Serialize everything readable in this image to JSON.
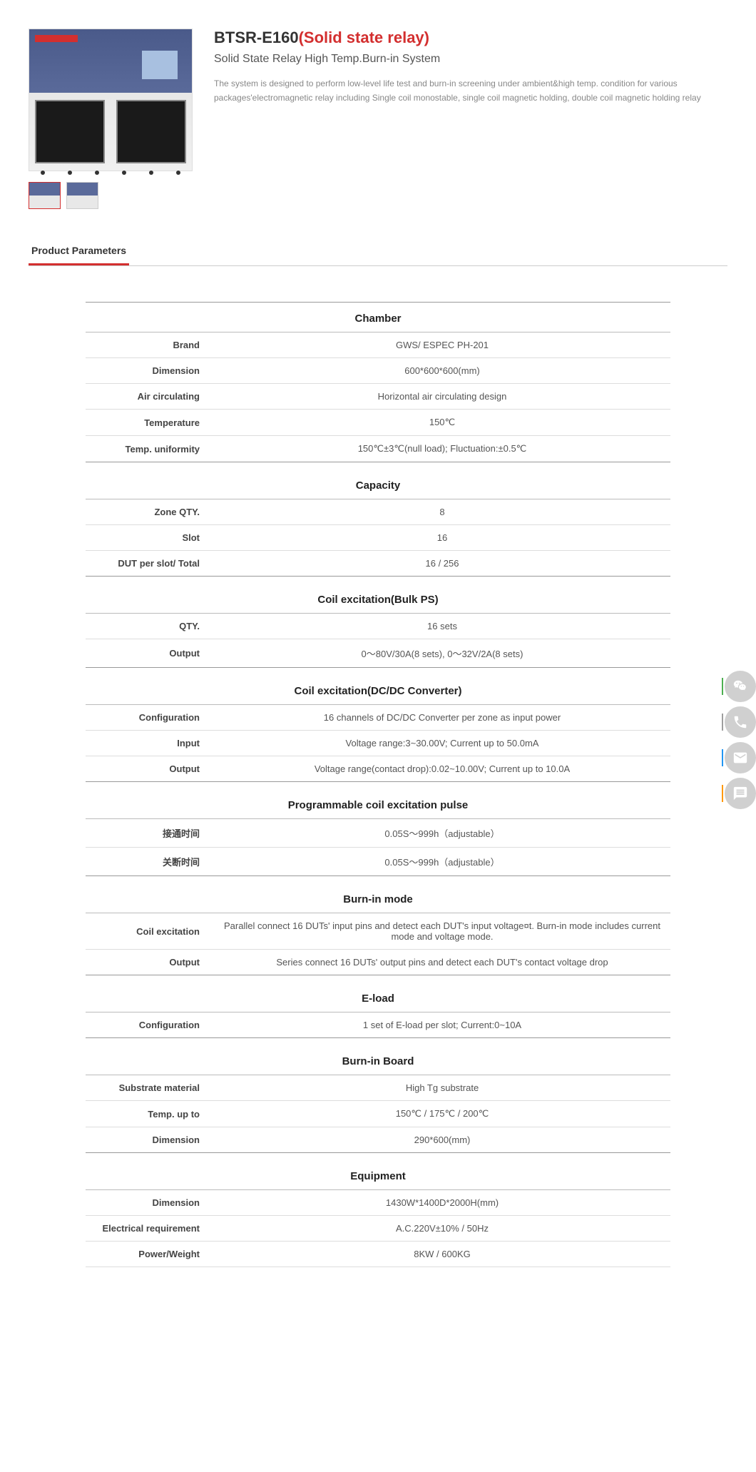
{
  "product": {
    "model": "BTSR-E160",
    "type_label": "(Solid state relay)",
    "subtitle": "Solid State Relay High Temp.Burn-in System",
    "description": "The system is designed to perform low-level life test and burn-in screening under ambient&high temp. condition for various packages'electromagnetic relay including Single coil monostable, single coil magnetic holding, double coil magnetic holding relay"
  },
  "tab": {
    "parameters": "Product Parameters"
  },
  "colors": {
    "accent": "#d32f2f",
    "border": "#ccc"
  },
  "sections": [
    {
      "title": "Chamber",
      "rows": [
        {
          "label": "Brand",
          "value": "GWS/ ESPEC PH-201"
        },
        {
          "label": "Dimension",
          "value": "600*600*600(mm)"
        },
        {
          "label": "Air circulating",
          "value": "Horizontal air circulating design"
        },
        {
          "label": "Temperature",
          "value": "150℃"
        },
        {
          "label": "Temp. uniformity",
          "value": "150℃±3℃(null load); Fluctuation:±0.5℃"
        }
      ]
    },
    {
      "title": "Capacity",
      "rows": [
        {
          "label": "Zone QTY.",
          "value": "8"
        },
        {
          "label": "Slot",
          "value": "16"
        },
        {
          "label": "DUT per slot/ Total",
          "value": "16 / 256"
        }
      ]
    },
    {
      "title": "Coil excitation(Bulk PS)",
      "rows": [
        {
          "label": "QTY.",
          "value": "16 sets"
        },
        {
          "label": "Output",
          "value": "0～80V/30A(8 sets), 0～32V/2A(8 sets)"
        }
      ]
    },
    {
      "title": "Coil excitation(DC/DC Converter)",
      "rows": [
        {
          "label": "Configuration",
          "value": "16 channels of DC/DC Converter per zone as input power"
        },
        {
          "label": "Input",
          "value": "Voltage range:3~30.00V; Current up to 50.0mA"
        },
        {
          "label": "Output",
          "value": "Voltage range(contact drop):0.02~10.00V; Current up to 10.0A"
        }
      ]
    },
    {
      "title": "Programmable coil excitation pulse",
      "rows": [
        {
          "label": "接通时间",
          "value": "0.05S～999h（adjustable）"
        },
        {
          "label": "关断时间",
          "value": "0.05S～999h（adjustable）"
        }
      ]
    },
    {
      "title": "Burn-in mode",
      "rows": [
        {
          "label": "Coil excitation",
          "value": "Parallel connect 16 DUTs' input pins and detect each DUT's input voltage¤t. Burn-in mode includes current mode and voltage mode."
        },
        {
          "label": "Output",
          "value": "Series connect 16 DUTs' output pins and detect each DUT's contact voltage drop"
        }
      ]
    },
    {
      "title": "E-load",
      "rows": [
        {
          "label": "Configuration",
          "value": "1 set of E-load per slot; Current:0~10A"
        }
      ]
    },
    {
      "title": "Burn-in Board",
      "rows": [
        {
          "label": "Substrate material",
          "value": "High Tg substrate"
        },
        {
          "label": "Temp. up to",
          "value": "150℃ / 175℃ / 200℃"
        },
        {
          "label": "Dimension",
          "value": "290*600(mm)"
        }
      ]
    },
    {
      "title": "Equipment",
      "rows": [
        {
          "label": "Dimension",
          "value": "1430W*1400D*2000H(mm)"
        },
        {
          "label": "Electrical requirement",
          "value": "A.C.220V±10% / 50Hz"
        },
        {
          "label": "Power/Weight",
          "value": "8KW / 600KG"
        }
      ]
    }
  ],
  "float_icons": [
    "wechat-icon",
    "phone-icon",
    "email-icon",
    "chat-icon"
  ]
}
